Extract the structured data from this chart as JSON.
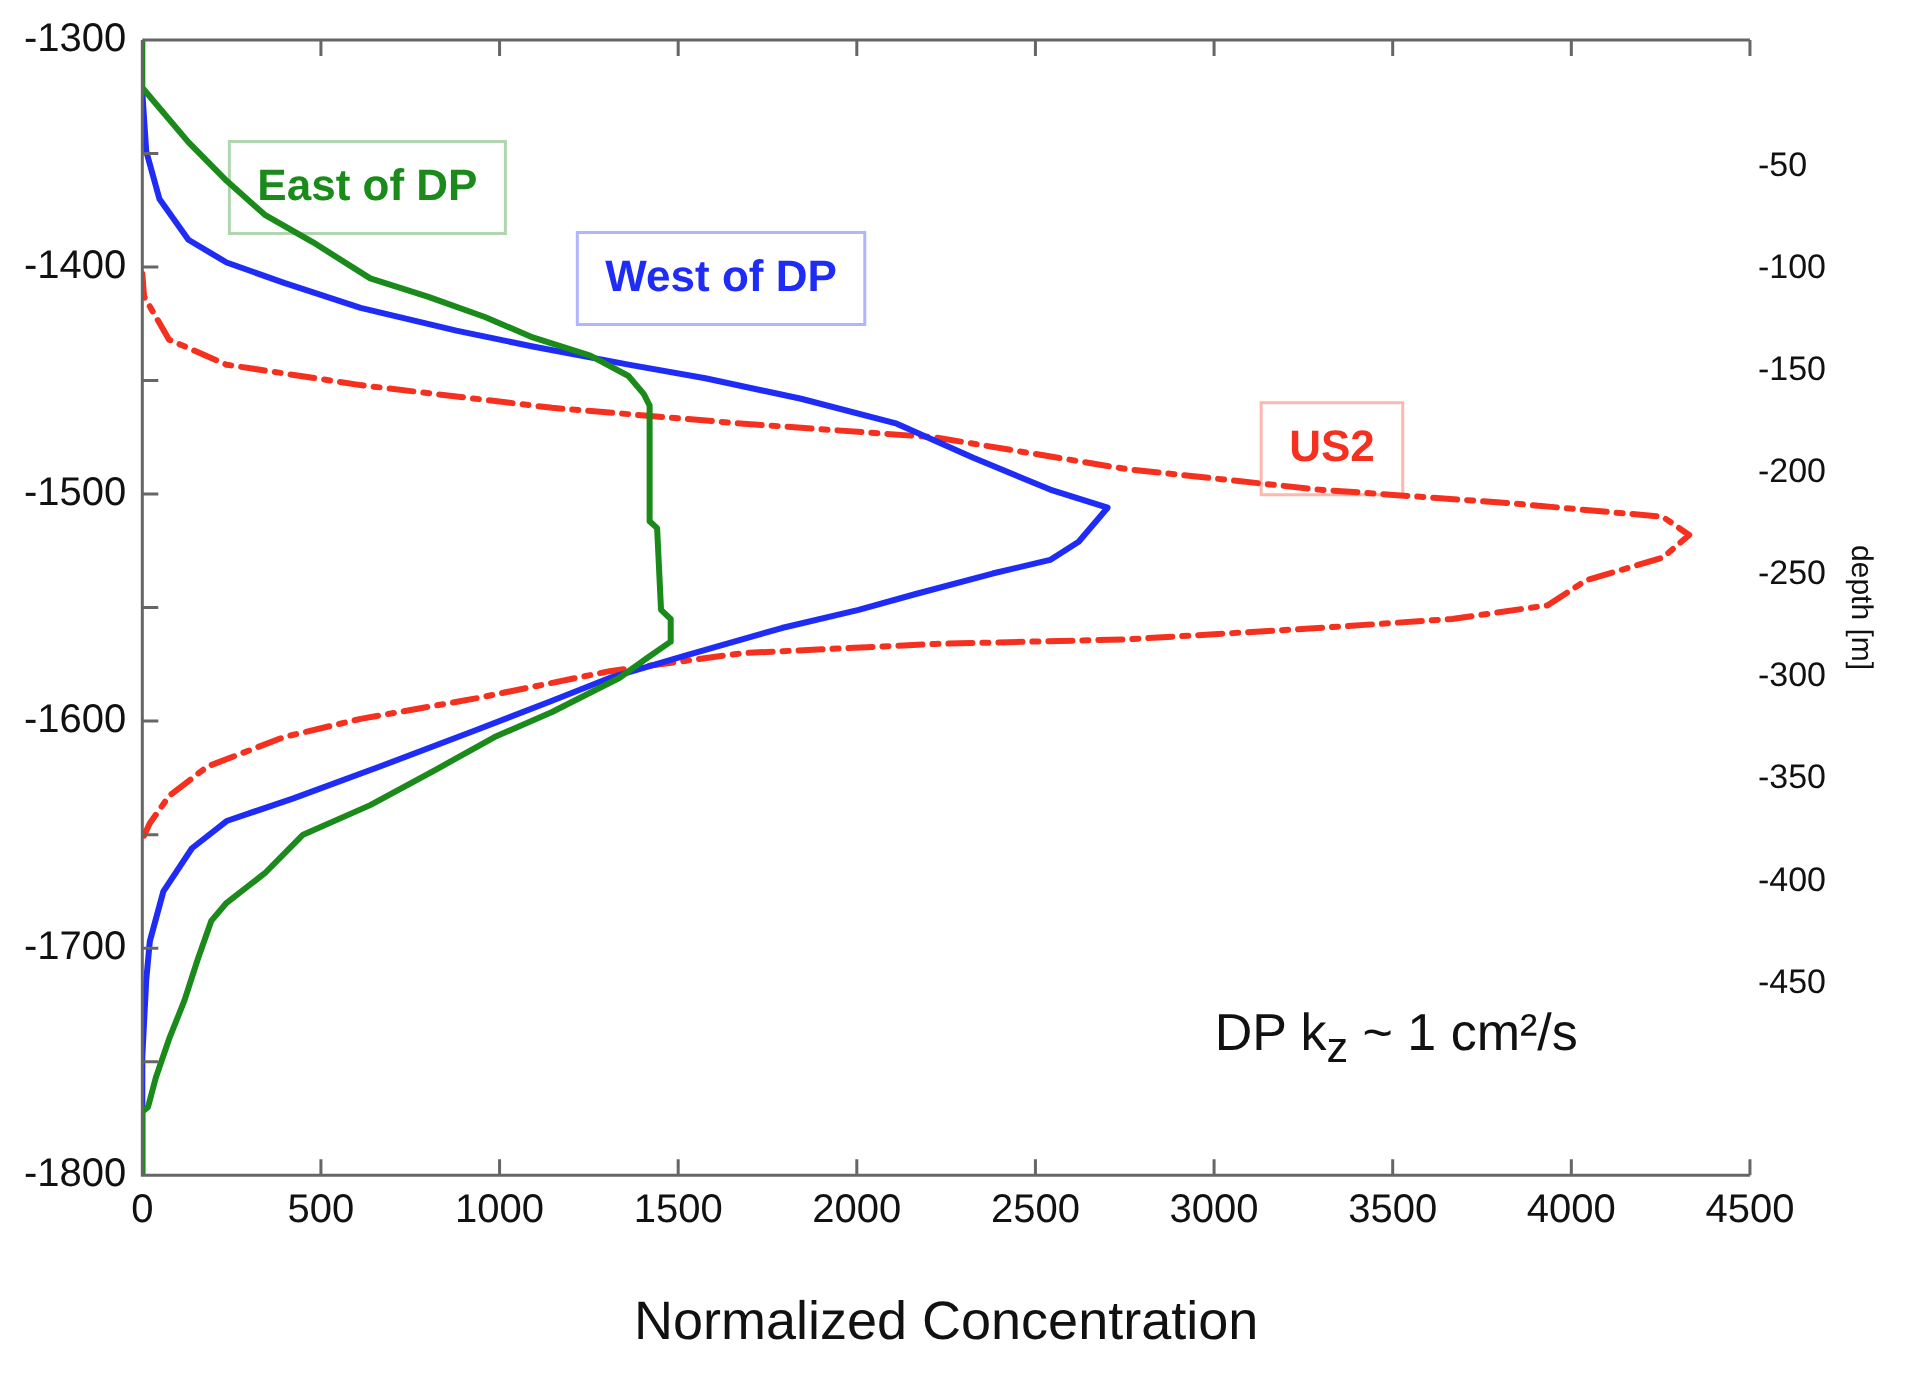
{
  "chart_data": {
    "type": "line",
    "xlabel": "Normalized Concentration",
    "y2label": "depth [m]",
    "xlim": [
      0,
      4500
    ],
    "xticks": [
      0,
      500,
      1000,
      1500,
      2000,
      2500,
      3000,
      3500,
      4000,
      4500
    ],
    "ylim": [
      -1800,
      -1300
    ],
    "yticks": [
      -1800,
      {
        "value": -1750,
        "label": null
      },
      -1700,
      {
        "value": -1650,
        "label": null
      },
      -1600,
      {
        "value": -1550,
        "label": null
      },
      -1500,
      {
        "value": -1450,
        "label": null
      },
      -1400,
      {
        "value": -1350,
        "label": null
      },
      -1300
    ],
    "y2lim": [
      -544,
      12
    ],
    "y2ticks": [
      -450,
      -400,
      -350,
      -300,
      -250,
      -200,
      -150,
      -100,
      -50
    ],
    "grid": false,
    "legend": false,
    "marker": "none",
    "annotations": [
      "DP k$_{z}$ ~ 1 cm²/s"
    ],
    "series": [
      {
        "name": "East of DP",
        "color": "#1a8a1a",
        "line_style": "solid",
        "x": [
          0,
          0,
          32,
          129,
          236,
          343,
          477,
          638,
          799,
          959,
          1093,
          1254,
          1361,
          1404,
          1420,
          1420,
          1441,
          1452,
          1479,
          1479,
          1415,
          1335,
          1147,
          986,
          826,
          638,
          450,
          343,
          236,
          193,
          155,
          118,
          75,
          38,
          16,
          0,
          0
        ],
        "values": [
          -1300,
          -1321,
          -1327,
          -1345,
          -1362,
          -1377,
          -1389,
          -1405,
          -1413,
          -1422,
          -1431,
          -1439,
          -1448,
          -1456,
          -1461,
          -1512,
          -1515,
          -1551,
          -1555,
          -1565,
          -1572,
          -1581,
          -1596,
          -1607,
          -1621,
          -1637,
          -1650,
          -1667,
          -1680,
          -1688,
          -1705,
          -1723,
          -1740,
          -1757,
          -1770,
          -1772,
          -1800
        ]
      },
      {
        "name": "West of DP",
        "color": "#1f2cf5",
        "line_style": "solid",
        "x": [
          0,
          11,
          48,
          129,
          236,
          397,
          611,
          879,
          1093,
          1361,
          1576,
          1844,
          2112,
          2326,
          2541,
          2702,
          2621,
          2541,
          2380,
          2165,
          2005,
          1790,
          1522,
          1308,
          1147,
          933,
          665,
          423,
          236,
          139,
          59,
          21,
          11,
          0,
          0
        ],
        "values": [
          -1323,
          -1349,
          -1370,
          -1388,
          -1398,
          -1407,
          -1418,
          -1428,
          -1435,
          -1443,
          -1449,
          -1458,
          -1469,
          -1484,
          -1498,
          -1506,
          -1521,
          -1529,
          -1535,
          -1544,
          -1551,
          -1559,
          -1571,
          -1581,
          -1591,
          -1604,
          -1620,
          -1634,
          -1644,
          -1656,
          -1675,
          -1697,
          -1714,
          -1748,
          -1800
        ]
      },
      {
        "name": "US2",
        "color": "#f5301e",
        "line_style": "dashdot",
        "x": [
          0,
          5,
          75,
          236,
          611,
          1147,
          1683,
          2219,
          2755,
          3291,
          3827,
          4256,
          4330,
          4256,
          4041,
          3934,
          3666,
          3291,
          2755,
          2219,
          1683,
          1308,
          933,
          611,
          397,
          182,
          75,
          21,
          0
        ],
        "values": [
          -1403,
          -1413,
          -1432,
          -1443,
          -1452,
          -1462,
          -1469,
          -1475,
          -1489,
          -1498,
          -1504,
          -1510,
          -1518,
          -1528,
          -1538,
          -1549,
          -1555,
          -1559,
          -1564,
          -1566,
          -1570,
          -1578,
          -1590,
          -1599,
          -1607,
          -1620,
          -1633,
          -1645,
          -1652
        ]
      }
    ]
  }
}
